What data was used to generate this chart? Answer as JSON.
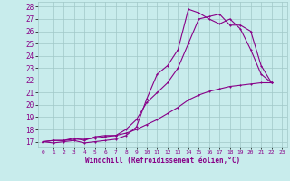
{
  "xlabel": "Windchill (Refroidissement éolien,°C)",
  "background_color": "#c8ecec",
  "grid_color": "#a0c8c8",
  "line_color": "#880088",
  "xlim": [
    -0.5,
    23.5
  ],
  "ylim": [
    16.6,
    28.4
  ],
  "xticks": [
    0,
    1,
    2,
    3,
    4,
    5,
    6,
    7,
    8,
    9,
    10,
    11,
    12,
    13,
    14,
    15,
    16,
    17,
    18,
    19,
    20,
    21,
    22,
    23
  ],
  "yticks": [
    17,
    18,
    19,
    20,
    21,
    22,
    23,
    24,
    25,
    26,
    27,
    28
  ],
  "line1_x": [
    0,
    1,
    2,
    3,
    4,
    5,
    6,
    7,
    8,
    9,
    10,
    11,
    12,
    13,
    14,
    15,
    16,
    17,
    18,
    19,
    20,
    21,
    22
  ],
  "line1_y": [
    17.0,
    16.9,
    17.0,
    17.1,
    16.9,
    17.0,
    17.1,
    17.2,
    17.5,
    18.2,
    20.5,
    22.5,
    23.2,
    24.5,
    27.8,
    27.5,
    27.0,
    26.6,
    27.0,
    26.2,
    24.5,
    22.5,
    21.8
  ],
  "line2_x": [
    0,
    1,
    2,
    3,
    4,
    5,
    6,
    7,
    8,
    9,
    10,
    11,
    12,
    13,
    14,
    15,
    16,
    17,
    18,
    19,
    20,
    21,
    22
  ],
  "line2_y": [
    17.0,
    17.1,
    17.1,
    17.3,
    17.1,
    17.4,
    17.5,
    17.5,
    18.0,
    18.8,
    20.2,
    21.0,
    21.8,
    23.0,
    25.0,
    27.0,
    27.2,
    27.4,
    26.5,
    26.5,
    26.0,
    23.2,
    21.8
  ],
  "line3_x": [
    0,
    1,
    2,
    3,
    4,
    5,
    6,
    7,
    8,
    9,
    10,
    11,
    12,
    13,
    14,
    15,
    16,
    17,
    18,
    19,
    20,
    21,
    22
  ],
  "line3_y": [
    17.0,
    17.1,
    17.1,
    17.2,
    17.2,
    17.3,
    17.4,
    17.5,
    17.7,
    18.0,
    18.4,
    18.8,
    19.3,
    19.8,
    20.4,
    20.8,
    21.1,
    21.3,
    21.5,
    21.6,
    21.7,
    21.8,
    21.8
  ]
}
